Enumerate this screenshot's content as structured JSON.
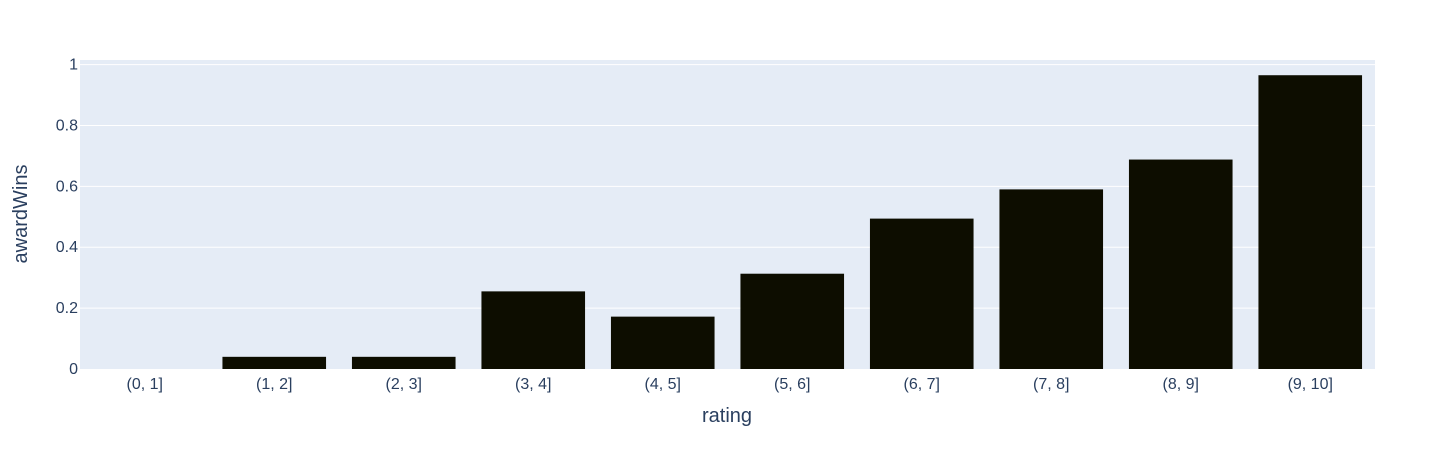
{
  "colors": {
    "plot_background": "#e5ecf6",
    "grid": "#ffffff",
    "bar": "#0d0d00",
    "text": "#2a3f5f"
  },
  "chart_data": {
    "type": "bar",
    "title": "",
    "xlabel": "rating",
    "ylabel": "awardWins",
    "categories": [
      "(0, 1]",
      "(1, 2]",
      "(2, 3]",
      "(3, 4]",
      "(4, 5]",
      "(5, 6]",
      "(6, 7]",
      "(7, 8]",
      "(8, 9]",
      "(9, 10]"
    ],
    "values": [
      0,
      0.04,
      0.04,
      0.255,
      0.172,
      0.313,
      0.494,
      0.59,
      0.688,
      0.965
    ],
    "ylim": [
      0,
      1.015
    ],
    "yticks": [
      0,
      0.2,
      0.4,
      0.6,
      0.8,
      1
    ],
    "ytick_labels": [
      "0",
      "0.2",
      "0.4",
      "0.6",
      "0.8",
      "1"
    ],
    "grid": true,
    "legend": false
  }
}
